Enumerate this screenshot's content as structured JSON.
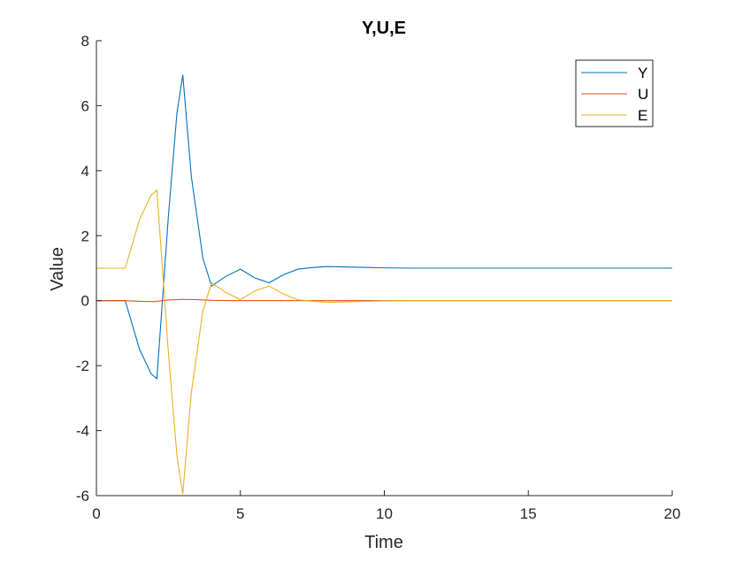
{
  "chart_data": {
    "type": "line",
    "title": "Y,U,E",
    "xlabel": "Time",
    "ylabel": "Value",
    "xlim": [
      0,
      20
    ],
    "ylim": [
      -6,
      8
    ],
    "xticks": [
      0,
      5,
      10,
      15,
      20
    ],
    "yticks": [
      -6,
      -4,
      -2,
      0,
      2,
      4,
      6,
      8
    ],
    "grid": false,
    "legend_position": "top-right",
    "series": [
      {
        "name": "Y",
        "color": "#0072BD",
        "x": [
          0,
          1,
          1.5,
          1.9,
          2.1,
          2.5,
          2.8,
          3.0,
          3.3,
          3.7,
          4.0,
          4.5,
          5.0,
          5.5,
          6.0,
          6.5,
          7.0,
          7.5,
          8.0,
          9.0,
          10.0,
          11.0,
          12.0,
          14.0,
          16.0,
          18.0,
          20.0
        ],
        "values": [
          0,
          0,
          -1.5,
          -2.25,
          -2.4,
          2.6,
          5.8,
          6.95,
          3.8,
          1.3,
          0.45,
          0.75,
          0.97,
          0.7,
          0.55,
          0.8,
          0.97,
          1.02,
          1.05,
          1.03,
          1.01,
          1.0,
          1.0,
          1.0,
          1.0,
          1.0,
          1.0
        ]
      },
      {
        "name": "U",
        "color": "#D95319",
        "x": [
          0,
          1,
          1.5,
          2.0,
          2.5,
          3.0,
          3.5,
          4.0,
          5.0,
          6.0,
          8.0,
          10.0,
          15.0,
          20.0
        ],
        "values": [
          0,
          0,
          -0.02,
          -0.03,
          0.02,
          0.04,
          0.03,
          0.01,
          0.0,
          0.0,
          0.0,
          0.0,
          0.0,
          0.0
        ]
      },
      {
        "name": "E",
        "color": "#EDB120",
        "x": [
          0,
          1,
          1.5,
          1.9,
          2.1,
          2.5,
          2.8,
          3.0,
          3.3,
          3.7,
          4.0,
          4.5,
          5.0,
          5.5,
          6.0,
          6.5,
          7.0,
          7.5,
          8.0,
          9.0,
          10.0,
          11.0,
          12.0,
          14.0,
          16.0,
          18.0,
          20.0
        ],
        "values": [
          1,
          1,
          2.5,
          3.25,
          3.4,
          -1.6,
          -4.8,
          -5.95,
          -2.8,
          -0.3,
          0.55,
          0.25,
          0.03,
          0.3,
          0.45,
          0.2,
          0.03,
          -0.02,
          -0.05,
          -0.03,
          -0.01,
          0.0,
          0.0,
          0.0,
          0.0,
          0.0,
          0.0
        ]
      }
    ]
  }
}
